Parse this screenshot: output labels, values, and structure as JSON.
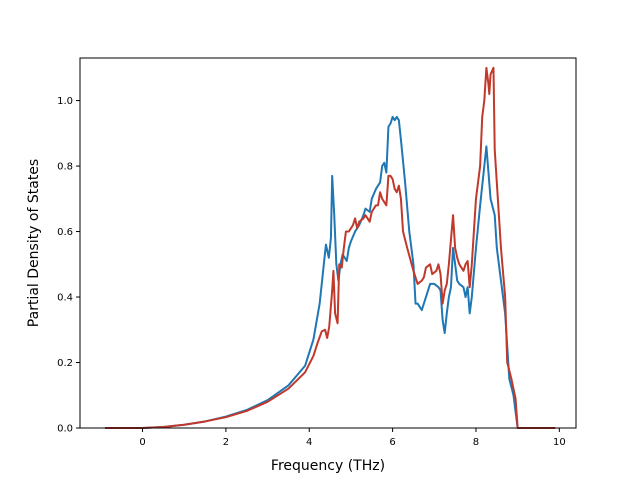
{
  "chart_data": {
    "type": "line",
    "title": "",
    "xlabel": "Frequency (THz)",
    "ylabel": "Partial Density of States",
    "xlim": [
      -1.5,
      10.4
    ],
    "ylim": [
      0.0,
      1.13
    ],
    "xticks": [
      0,
      2,
      4,
      6,
      8,
      10
    ],
    "yticks": [
      0.0,
      0.2,
      0.4,
      0.6,
      0.8,
      1.0
    ],
    "ytick_labels": [
      "0.0",
      "0.2",
      "0.4",
      "0.6",
      "0.8",
      "1.0"
    ],
    "grid": false,
    "legend": "none",
    "series": [
      {
        "color": "#1f77b4",
        "points": [
          [
            -0.9,
            0.0
          ],
          [
            0.0,
            0.0
          ],
          [
            0.5,
            0.003
          ],
          [
            1.0,
            0.01
          ],
          [
            1.5,
            0.02
          ],
          [
            2.0,
            0.035
          ],
          [
            2.5,
            0.055
          ],
          [
            3.0,
            0.085
          ],
          [
            3.5,
            0.13
          ],
          [
            3.9,
            0.19
          ],
          [
            4.1,
            0.27
          ],
          [
            4.25,
            0.38
          ],
          [
            4.35,
            0.5
          ],
          [
            4.4,
            0.56
          ],
          [
            4.47,
            0.52
          ],
          [
            4.52,
            0.58
          ],
          [
            4.55,
            0.77
          ],
          [
            4.6,
            0.65
          ],
          [
            4.65,
            0.5
          ],
          [
            4.7,
            0.45
          ],
          [
            4.75,
            0.5
          ],
          [
            4.8,
            0.53
          ],
          [
            4.85,
            0.52
          ],
          [
            4.9,
            0.51
          ],
          [
            4.95,
            0.55
          ],
          [
            5.0,
            0.57
          ],
          [
            5.1,
            0.6
          ],
          [
            5.2,
            0.62
          ],
          [
            5.3,
            0.65
          ],
          [
            5.35,
            0.67
          ],
          [
            5.45,
            0.66
          ],
          [
            5.5,
            0.7
          ],
          [
            5.6,
            0.73
          ],
          [
            5.7,
            0.75
          ],
          [
            5.75,
            0.8
          ],
          [
            5.8,
            0.81
          ],
          [
            5.85,
            0.78
          ],
          [
            5.9,
            0.92
          ],
          [
            5.95,
            0.93
          ],
          [
            6.0,
            0.95
          ],
          [
            6.05,
            0.94
          ],
          [
            6.1,
            0.95
          ],
          [
            6.15,
            0.94
          ],
          [
            6.2,
            0.88
          ],
          [
            6.3,
            0.75
          ],
          [
            6.4,
            0.6
          ],
          [
            6.5,
            0.5
          ],
          [
            6.55,
            0.38
          ],
          [
            6.6,
            0.38
          ],
          [
            6.65,
            0.37
          ],
          [
            6.7,
            0.36
          ],
          [
            6.8,
            0.4
          ],
          [
            6.9,
            0.44
          ],
          [
            7.0,
            0.44
          ],
          [
            7.1,
            0.43
          ],
          [
            7.15,
            0.42
          ],
          [
            7.2,
            0.33
          ],
          [
            7.25,
            0.29
          ],
          [
            7.3,
            0.35
          ],
          [
            7.35,
            0.4
          ],
          [
            7.4,
            0.43
          ],
          [
            7.45,
            0.55
          ],
          [
            7.5,
            0.5
          ],
          [
            7.55,
            0.45
          ],
          [
            7.6,
            0.44
          ],
          [
            7.7,
            0.43
          ],
          [
            7.75,
            0.4
          ],
          [
            7.8,
            0.43
          ],
          [
            7.85,
            0.35
          ],
          [
            7.9,
            0.4
          ],
          [
            8.0,
            0.55
          ],
          [
            8.1,
            0.68
          ],
          [
            8.2,
            0.8
          ],
          [
            8.25,
            0.86
          ],
          [
            8.3,
            0.78
          ],
          [
            8.35,
            0.7
          ],
          [
            8.45,
            0.65
          ],
          [
            8.5,
            0.55
          ],
          [
            8.6,
            0.45
          ],
          [
            8.7,
            0.35
          ],
          [
            8.8,
            0.15
          ],
          [
            8.9,
            0.1
          ],
          [
            9.0,
            0.0
          ],
          [
            9.9,
            0.0
          ]
        ]
      },
      {
        "color": "#c0392b",
        "points": [
          [
            -0.9,
            0.0
          ],
          [
            0.0,
            0.0
          ],
          [
            0.5,
            0.003
          ],
          [
            1.0,
            0.01
          ],
          [
            1.5,
            0.02
          ],
          [
            2.0,
            0.033
          ],
          [
            2.5,
            0.052
          ],
          [
            3.0,
            0.08
          ],
          [
            3.5,
            0.12
          ],
          [
            3.9,
            0.17
          ],
          [
            4.1,
            0.22
          ],
          [
            4.2,
            0.26
          ],
          [
            4.3,
            0.295
          ],
          [
            4.38,
            0.3
          ],
          [
            4.43,
            0.275
          ],
          [
            4.48,
            0.31
          ],
          [
            4.55,
            0.42
          ],
          [
            4.58,
            0.48
          ],
          [
            4.62,
            0.35
          ],
          [
            4.68,
            0.32
          ],
          [
            4.72,
            0.5
          ],
          [
            4.78,
            0.49
          ],
          [
            4.83,
            0.55
          ],
          [
            4.88,
            0.6
          ],
          [
            4.95,
            0.6
          ],
          [
            5.05,
            0.62
          ],
          [
            5.1,
            0.64
          ],
          [
            5.15,
            0.61
          ],
          [
            5.2,
            0.63
          ],
          [
            5.3,
            0.64
          ],
          [
            5.35,
            0.65
          ],
          [
            5.4,
            0.64
          ],
          [
            5.45,
            0.63
          ],
          [
            5.5,
            0.66
          ],
          [
            5.6,
            0.68
          ],
          [
            5.65,
            0.68
          ],
          [
            5.7,
            0.72
          ],
          [
            5.75,
            0.7
          ],
          [
            5.85,
            0.68
          ],
          [
            5.9,
            0.77
          ],
          [
            5.95,
            0.77
          ],
          [
            6.0,
            0.76
          ],
          [
            6.05,
            0.73
          ],
          [
            6.1,
            0.72
          ],
          [
            6.15,
            0.74
          ],
          [
            6.2,
            0.7
          ],
          [
            6.25,
            0.6
          ],
          [
            6.35,
            0.55
          ],
          [
            6.5,
            0.48
          ],
          [
            6.55,
            0.46
          ],
          [
            6.6,
            0.44
          ],
          [
            6.7,
            0.45
          ],
          [
            6.75,
            0.46
          ],
          [
            6.8,
            0.49
          ],
          [
            6.9,
            0.5
          ],
          [
            6.95,
            0.47
          ],
          [
            7.05,
            0.48
          ],
          [
            7.1,
            0.5
          ],
          [
            7.15,
            0.47
          ],
          [
            7.2,
            0.38
          ],
          [
            7.25,
            0.42
          ],
          [
            7.3,
            0.44
          ],
          [
            7.35,
            0.5
          ],
          [
            7.45,
            0.65
          ],
          [
            7.5,
            0.55
          ],
          [
            7.55,
            0.52
          ],
          [
            7.6,
            0.5
          ],
          [
            7.7,
            0.48
          ],
          [
            7.75,
            0.5
          ],
          [
            7.8,
            0.51
          ],
          [
            7.85,
            0.43
          ],
          [
            7.9,
            0.5
          ],
          [
            7.95,
            0.6
          ],
          [
            8.0,
            0.7
          ],
          [
            8.1,
            0.8
          ],
          [
            8.15,
            0.95
          ],
          [
            8.2,
            1.0
          ],
          [
            8.25,
            1.1
          ],
          [
            8.3,
            1.05
          ],
          [
            8.32,
            1.02
          ],
          [
            8.35,
            1.08
          ],
          [
            8.42,
            1.1
          ],
          [
            8.45,
            0.85
          ],
          [
            8.5,
            0.75
          ],
          [
            8.6,
            0.55
          ],
          [
            8.7,
            0.4
          ],
          [
            8.75,
            0.2
          ],
          [
            8.85,
            0.15
          ],
          [
            8.95,
            0.09
          ],
          [
            9.0,
            0.0
          ],
          [
            9.9,
            0.0
          ]
        ]
      }
    ]
  }
}
